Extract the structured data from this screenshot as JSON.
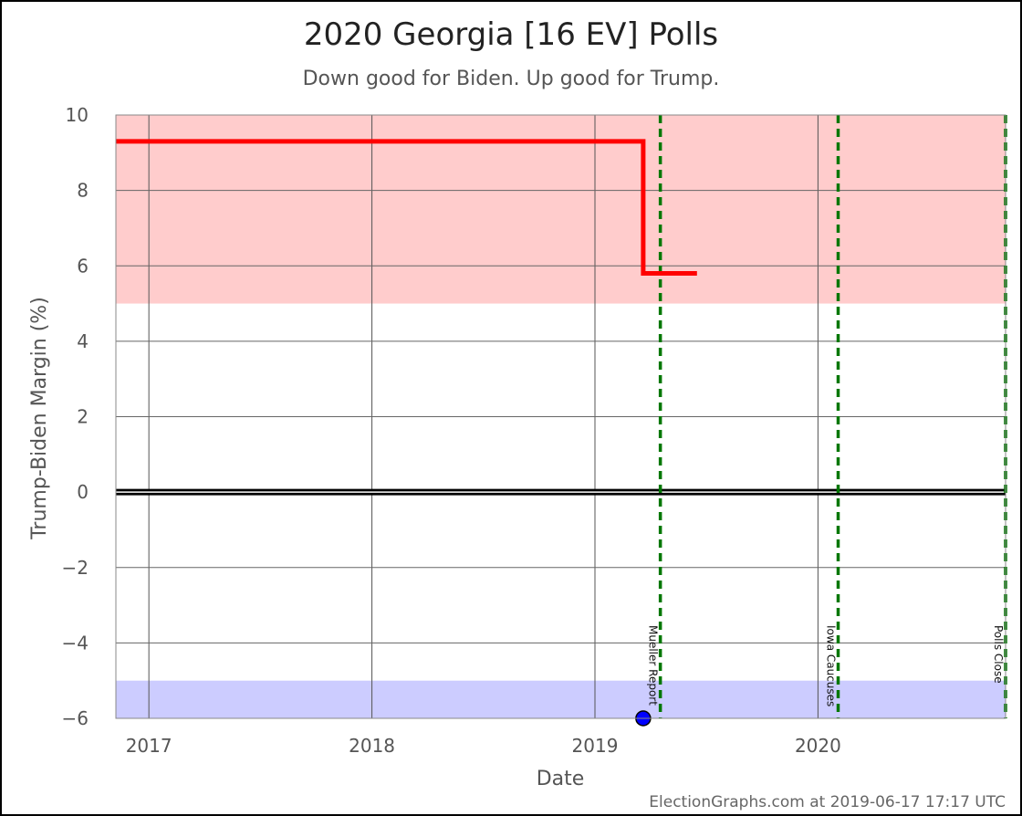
{
  "chart_data": {
    "type": "line",
    "title": "2020 Georgia [16 EV] Polls",
    "subtitle": "Down good for Biden. Up good for Trump.",
    "xlabel": "Date",
    "ylabel": "Trump-Biden Margin (%)",
    "xlim": [
      "2016-11-08",
      "2020-11-03"
    ],
    "ylim": [
      -6,
      10
    ],
    "x_ticks": [
      "2017",
      "2018",
      "2019",
      "2020"
    ],
    "y_ticks": [
      10,
      8,
      6,
      4,
      2,
      0,
      -2,
      -4,
      -6
    ],
    "bands": [
      {
        "party": "trump",
        "from": 5,
        "to": 10,
        "color": "#ffcccc"
      },
      {
        "party": "biden",
        "from": -6,
        "to": -5,
        "color": "#ccccff"
      }
    ],
    "zero_line": 0,
    "series": [
      {
        "color": "#ff0000",
        "points": [
          {
            "x": "2016-11-08",
            "y": 9.3
          },
          {
            "x": "2019-03-21",
            "y": 9.3
          },
          {
            "x": "2019-03-21",
            "y": 5.8
          },
          {
            "x": "2019-06-17",
            "y": 5.8
          }
        ]
      }
    ],
    "polls": [
      {
        "x": "2019-03-21",
        "y": -6,
        "color": "#0000ff"
      }
    ],
    "events": [
      {
        "label": "Mueller Report",
        "x": "2019-04-18",
        "color": "#007700"
      },
      {
        "label": "Iowa Caucuses",
        "x": "2020-02-03",
        "color": "#007700"
      },
      {
        "label": "Polls Close",
        "x": "2020-11-03",
        "color": "#007700"
      }
    ]
  },
  "credit": "ElectionGraphs.com at 2019-06-17 17:17 UTC"
}
